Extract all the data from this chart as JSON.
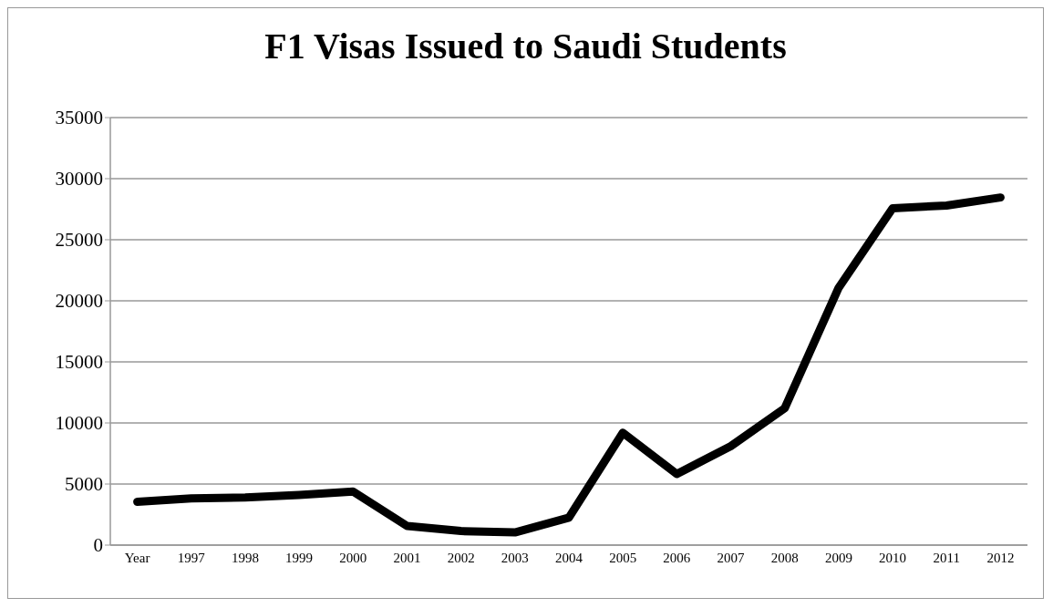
{
  "chart_data": {
    "type": "line",
    "title": "F1 Visas Issued to Saudi Students",
    "categories": [
      "Year",
      "1997",
      "1998",
      "1999",
      "2000",
      "2001",
      "2002",
      "2003",
      "2004",
      "2005",
      "2006",
      "2007",
      "2008",
      "2009",
      "2010",
      "2011",
      "2012"
    ],
    "series": [
      {
        "color": "#000000",
        "values": [
          3540,
          3820,
          3900,
          4100,
          4380,
          1570,
          1150,
          1040,
          2250,
          9200,
          5820,
          8100,
          11200,
          21070,
          27580,
          27800,
          28460
        ]
      }
    ],
    "ylim": [
      0,
      35000
    ],
    "yticks": [
      0,
      5000,
      10000,
      15000,
      20000,
      25000,
      30000,
      35000
    ],
    "grid": "y",
    "legend": false,
    "marker": "none",
    "line_style": "solid"
  }
}
